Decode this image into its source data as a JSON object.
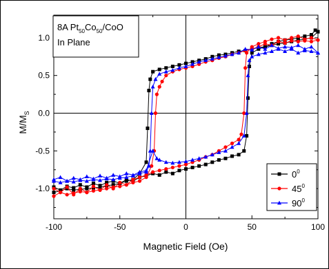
{
  "chart_data": {
    "type": "line",
    "xlabel": "Magnetic Field (Oe)",
    "ylabel_main": "M/M",
    "ylabel_sub": "S",
    "xlim": [
      -100,
      100
    ],
    "ylim": [
      -1.4,
      1.3
    ],
    "x_ticks": [
      -100,
      -50,
      0,
      50,
      100
    ],
    "x_tick_labels": [
      "-100",
      "-50",
      "0",
      "50",
      "100"
    ],
    "y_ticks": [
      -1.0,
      -0.5,
      0.0,
      0.5,
      1.0
    ],
    "y_tick_labels": [
      "-1.0",
      "-0.5",
      "0.0",
      "0.5",
      "1.0"
    ],
    "grid": false,
    "zero_lines": true,
    "annotation": {
      "line1_parts": [
        "8A Pt",
        "50",
        "Co",
        "50",
        "/CoO"
      ],
      "line2": "In Plane"
    },
    "legend_position": "bottom-right",
    "series": [
      {
        "name": "0",
        "name_sup": "0",
        "color": "#000000",
        "marker": "square",
        "branches": [
          [
            [
              -100,
              -0.98
            ],
            [
              -95,
              -1.02
            ],
            [
              -90,
              -0.97
            ],
            [
              -85,
              -0.99
            ],
            [
              -80,
              -0.95
            ],
            [
              -75,
              -0.98
            ],
            [
              -70,
              -0.93
            ],
            [
              -65,
              -0.96
            ],
            [
              -60,
              -0.92
            ],
            [
              -55,
              -0.9
            ],
            [
              -50,
              -0.93
            ],
            [
              -45,
              -0.88
            ],
            [
              -40,
              -0.9
            ],
            [
              -35,
              -0.85
            ],
            [
              -30,
              -0.83
            ],
            [
              -25,
              -0.8
            ],
            [
              -20,
              -0.82
            ],
            [
              -15,
              -0.78
            ],
            [
              -10,
              -0.8
            ],
            [
              -5,
              -0.76
            ],
            [
              0,
              -0.74
            ],
            [
              5,
              -0.72
            ],
            [
              10,
              -0.7
            ],
            [
              15,
              -0.68
            ],
            [
              20,
              -0.65
            ],
            [
              25,
              -0.62
            ],
            [
              30,
              -0.6
            ],
            [
              35,
              -0.57
            ],
            [
              40,
              -0.55
            ],
            [
              44,
              -0.5
            ],
            [
              46,
              -0.3
            ],
            [
              47,
              0.2
            ],
            [
              48,
              0.62
            ],
            [
              50,
              0.8
            ],
            [
              55,
              0.85
            ],
            [
              60,
              0.88
            ],
            [
              65,
              0.92
            ],
            [
              70,
              0.95
            ],
            [
              75,
              0.97
            ],
            [
              80,
              0.98
            ],
            [
              85,
              1.0
            ],
            [
              90,
              1.02
            ],
            [
              95,
              1.04
            ],
            [
              98,
              1.1
            ],
            [
              100,
              1.08
            ]
          ],
          [
            [
              100,
              1.08
            ],
            [
              95,
              1.0
            ],
            [
              90,
              0.98
            ],
            [
              85,
              0.97
            ],
            [
              80,
              0.95
            ],
            [
              75,
              0.93
            ],
            [
              70,
              0.92
            ],
            [
              65,
              0.9
            ],
            [
              60,
              0.88
            ],
            [
              55,
              0.87
            ],
            [
              50,
              0.85
            ],
            [
              45,
              0.83
            ],
            [
              40,
              0.82
            ],
            [
              35,
              0.8
            ],
            [
              30,
              0.78
            ],
            [
              25,
              0.77
            ],
            [
              20,
              0.75
            ],
            [
              15,
              0.72
            ],
            [
              10,
              0.7
            ],
            [
              5,
              0.68
            ],
            [
              0,
              0.66
            ],
            [
              -5,
              0.64
            ],
            [
              -10,
              0.62
            ],
            [
              -15,
              0.6
            ],
            [
              -20,
              0.58
            ],
            [
              -25,
              0.55
            ],
            [
              -27,
              0.45
            ],
            [
              -28,
              0.3
            ],
            [
              -29,
              -0.2
            ],
            [
              -30,
              -0.65
            ],
            [
              -35,
              -0.8
            ],
            [
              -40,
              -0.88
            ],
            [
              -45,
              -0.9
            ],
            [
              -50,
              -0.93
            ],
            [
              -55,
              -0.95
            ],
            [
              -60,
              -0.96
            ],
            [
              -65,
              -0.98
            ],
            [
              -70,
              -0.99
            ],
            [
              -75,
              -1.0
            ],
            [
              -80,
              -1.01
            ],
            [
              -85,
              -1.02
            ],
            [
              -90,
              -1.0
            ],
            [
              -95,
              -1.03
            ],
            [
              -100,
              -1.05
            ]
          ]
        ]
      },
      {
        "name": "45",
        "name_sup": "0",
        "color": "#ff0000",
        "marker": "circle",
        "branches": [
          [
            [
              -100,
              -1.0
            ],
            [
              -95,
              -1.05
            ],
            [
              -90,
              -0.98
            ],
            [
              -85,
              -1.08
            ],
            [
              -80,
              -1.0
            ],
            [
              -75,
              -1.05
            ],
            [
              -70,
              -0.97
            ],
            [
              -65,
              -1.02
            ],
            [
              -60,
              -0.95
            ],
            [
              -55,
              -1.0
            ],
            [
              -50,
              -0.92
            ],
            [
              -45,
              -0.95
            ],
            [
              -40,
              -0.88
            ],
            [
              -35,
              -0.85
            ],
            [
              -30,
              -0.82
            ],
            [
              -25,
              -0.78
            ],
            [
              -20,
              -0.76
            ],
            [
              -15,
              -0.74
            ],
            [
              -10,
              -0.72
            ],
            [
              -5,
              -0.7
            ],
            [
              0,
              -0.68
            ],
            [
              5,
              -0.65
            ],
            [
              10,
              -0.62
            ],
            [
              15,
              -0.58
            ],
            [
              20,
              -0.55
            ],
            [
              25,
              -0.5
            ],
            [
              30,
              -0.45
            ],
            [
              35,
              -0.4
            ],
            [
              40,
              -0.35
            ],
            [
              42,
              -0.28
            ],
            [
              44,
              0.0
            ],
            [
              45,
              0.6
            ],
            [
              46,
              0.8
            ],
            [
              50,
              0.88
            ],
            [
              55,
              0.92
            ],
            [
              60,
              0.95
            ],
            [
              65,
              0.98
            ],
            [
              70,
              1.0
            ],
            [
              75,
              0.97
            ],
            [
              80,
              1.0
            ],
            [
              85,
              1.02
            ],
            [
              90,
              0.98
            ],
            [
              95,
              1.0
            ],
            [
              100,
              0.97
            ]
          ],
          [
            [
              100,
              0.97
            ],
            [
              95,
              0.95
            ],
            [
              90,
              0.96
            ],
            [
              85,
              0.95
            ],
            [
              80,
              0.96
            ],
            [
              75,
              0.93
            ],
            [
              70,
              0.95
            ],
            [
              65,
              0.9
            ],
            [
              60,
              0.92
            ],
            [
              55,
              0.88
            ],
            [
              50,
              0.85
            ],
            [
              45,
              0.83
            ],
            [
              40,
              0.8
            ],
            [
              35,
              0.78
            ],
            [
              30,
              0.75
            ],
            [
              25,
              0.73
            ],
            [
              20,
              0.7
            ],
            [
              15,
              0.68
            ],
            [
              10,
              0.65
            ],
            [
              5,
              0.62
            ],
            [
              0,
              0.6
            ],
            [
              -5,
              0.58
            ],
            [
              -10,
              0.55
            ],
            [
              -15,
              0.5
            ],
            [
              -18,
              0.42
            ],
            [
              -20,
              0.35
            ],
            [
              -22,
              0.25
            ],
            [
              -23,
              0.0
            ],
            [
              -24,
              -0.5
            ],
            [
              -26,
              -0.7
            ],
            [
              -30,
              -0.85
            ],
            [
              -35,
              -0.9
            ],
            [
              -40,
              -0.92
            ],
            [
              -45,
              -0.95
            ],
            [
              -50,
              -0.97
            ],
            [
              -55,
              -0.98
            ],
            [
              -60,
              -1.0
            ],
            [
              -65,
              -1.02
            ],
            [
              -70,
              -1.03
            ],
            [
              -75,
              -1.05
            ],
            [
              -80,
              -1.04
            ],
            [
              -85,
              -1.06
            ],
            [
              -90,
              -1.08
            ],
            [
              -95,
              -1.05
            ],
            [
              -100,
              -1.1
            ]
          ]
        ]
      },
      {
        "name": "90",
        "name_sup": "0",
        "color": "#0000ff",
        "marker": "triangle",
        "branches": [
          [
            [
              -100,
              -0.88
            ],
            [
              -95,
              -0.85
            ],
            [
              -90,
              -0.9
            ],
            [
              -85,
              -0.86
            ],
            [
              -80,
              -0.88
            ],
            [
              -75,
              -0.84
            ],
            [
              -70,
              -0.87
            ],
            [
              -65,
              -0.83
            ],
            [
              -60,
              -0.86
            ],
            [
              -55,
              -0.82
            ],
            [
              -50,
              -0.84
            ],
            [
              -45,
              -0.8
            ],
            [
              -40,
              -0.82
            ],
            [
              -35,
              -0.78
            ],
            [
              -30,
              -0.76
            ],
            [
              -25,
              -0.5
            ],
            [
              -22,
              -0.6
            ],
            [
              -20,
              -0.62
            ],
            [
              -15,
              -0.65
            ],
            [
              -10,
              -0.66
            ],
            [
              -5,
              -0.65
            ],
            [
              0,
              -0.64
            ],
            [
              5,
              -0.62
            ],
            [
              10,
              -0.6
            ],
            [
              15,
              -0.58
            ],
            [
              20,
              -0.55
            ],
            [
              25,
              -0.52
            ],
            [
              30,
              -0.5
            ],
            [
              35,
              -0.45
            ],
            [
              40,
              -0.4
            ],
            [
              44,
              -0.3
            ],
            [
              46,
              0.0
            ],
            [
              47,
              0.5
            ],
            [
              48,
              0.7
            ],
            [
              50,
              0.75
            ],
            [
              55,
              0.78
            ],
            [
              60,
              0.8
            ],
            [
              65,
              0.82
            ],
            [
              70,
              0.85
            ],
            [
              75,
              0.82
            ],
            [
              80,
              0.85
            ],
            [
              85,
              0.8
            ],
            [
              90,
              0.83
            ],
            [
              95,
              0.82
            ],
            [
              100,
              0.8
            ]
          ],
          [
            [
              100,
              0.8
            ],
            [
              95,
              0.88
            ],
            [
              90,
              0.85
            ],
            [
              85,
              0.9
            ],
            [
              80,
              0.87
            ],
            [
              75,
              0.88
            ],
            [
              70,
              0.86
            ],
            [
              65,
              0.9
            ],
            [
              60,
              0.85
            ],
            [
              55,
              0.88
            ],
            [
              50,
              0.84
            ],
            [
              45,
              0.85
            ],
            [
              40,
              0.8
            ],
            [
              35,
              0.78
            ],
            [
              30,
              0.76
            ],
            [
              25,
              0.74
            ],
            [
              20,
              0.72
            ],
            [
              15,
              0.7
            ],
            [
              10,
              0.68
            ],
            [
              5,
              0.65
            ],
            [
              0,
              0.62
            ],
            [
              -5,
              0.6
            ],
            [
              -10,
              0.57
            ],
            [
              -15,
              0.55
            ],
            [
              -20,
              0.52
            ],
            [
              -23,
              0.45
            ],
            [
              -25,
              0.35
            ],
            [
              -26,
              0.0
            ],
            [
              -27,
              -0.5
            ],
            [
              -28,
              -0.7
            ],
            [
              -30,
              -0.78
            ],
            [
              -35,
              -0.8
            ],
            [
              -40,
              -0.83
            ],
            [
              -45,
              -0.85
            ],
            [
              -50,
              -0.86
            ],
            [
              -55,
              -0.88
            ],
            [
              -60,
              -0.87
            ],
            [
              -65,
              -0.89
            ],
            [
              -70,
              -0.88
            ],
            [
              -75,
              -0.9
            ],
            [
              -80,
              -0.89
            ],
            [
              -85,
              -0.91
            ],
            [
              -90,
              -0.9
            ],
            [
              -95,
              -0.92
            ],
            [
              -100,
              -0.9
            ]
          ]
        ]
      }
    ]
  }
}
